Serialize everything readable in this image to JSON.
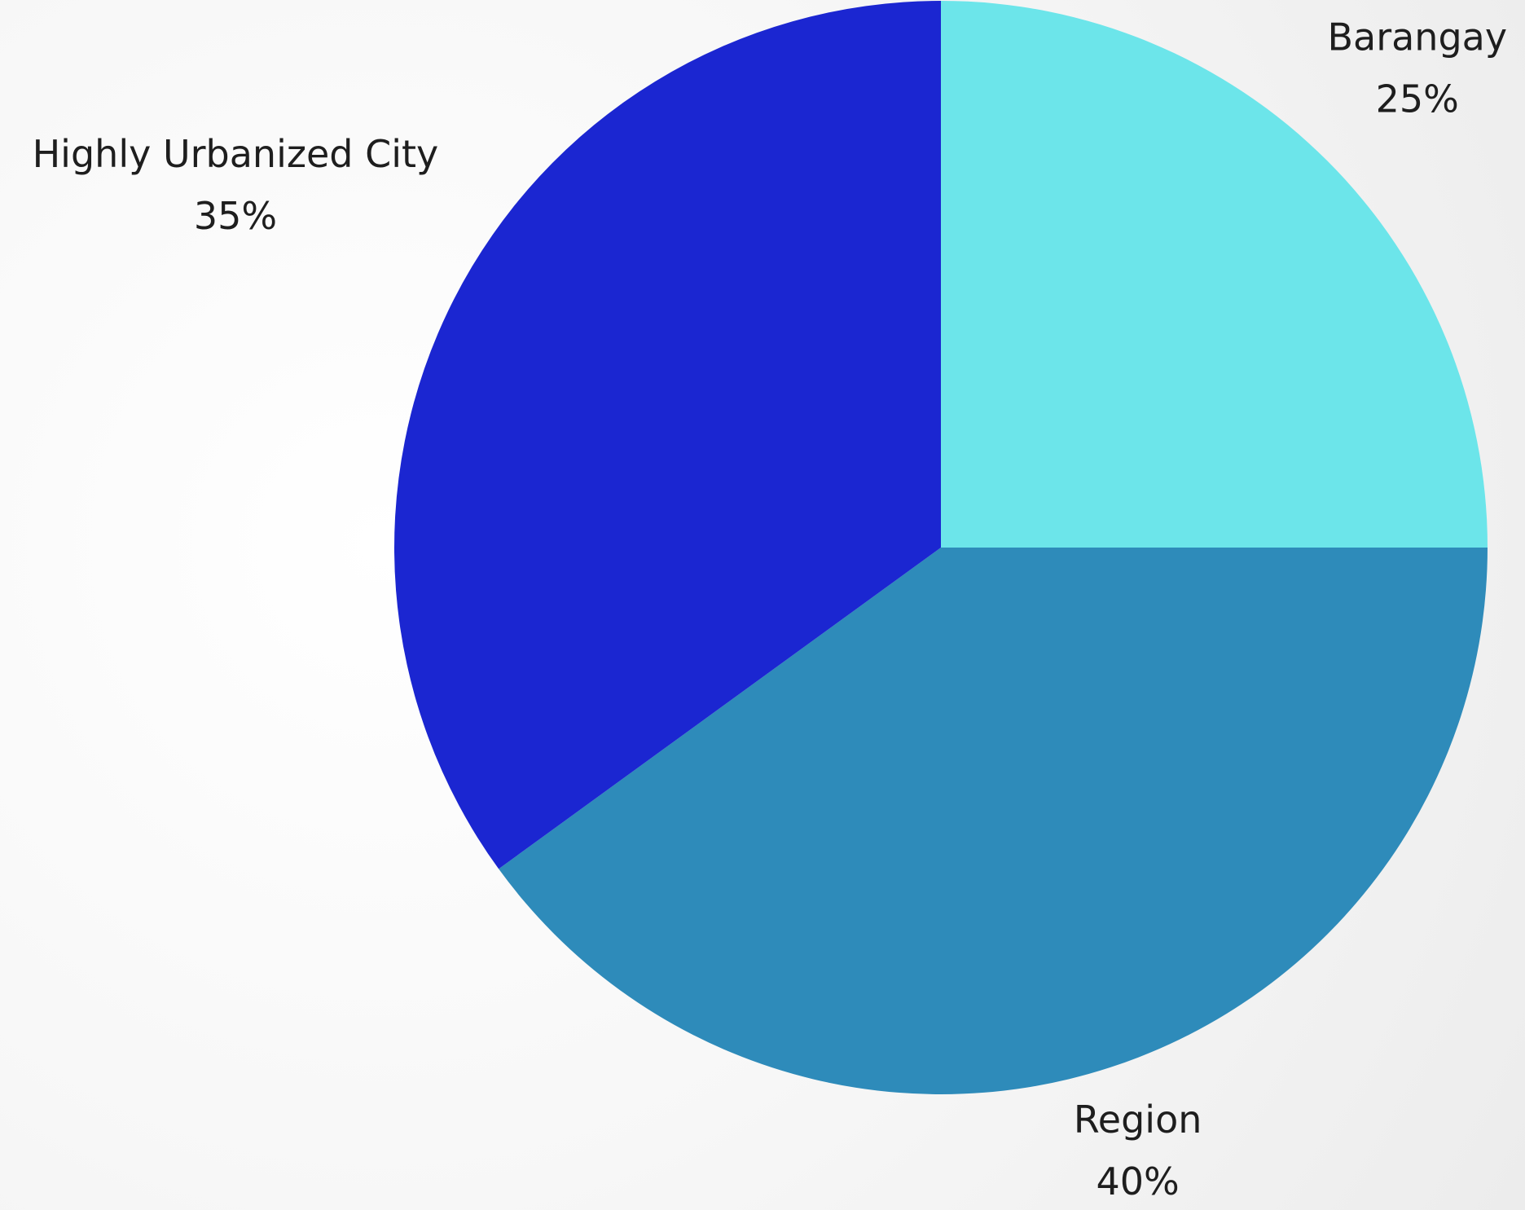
{
  "chart_data": {
    "type": "pie",
    "categories": [
      "Barangay",
      "Region",
      "Highly Urbanized City"
    ],
    "values": [
      25,
      40,
      35
    ],
    "value_labels": [
      "25%",
      "40%",
      "35%"
    ],
    "colors": [
      "#6ce5ea",
      "#2e8bba",
      "#1b26d1"
    ]
  }
}
